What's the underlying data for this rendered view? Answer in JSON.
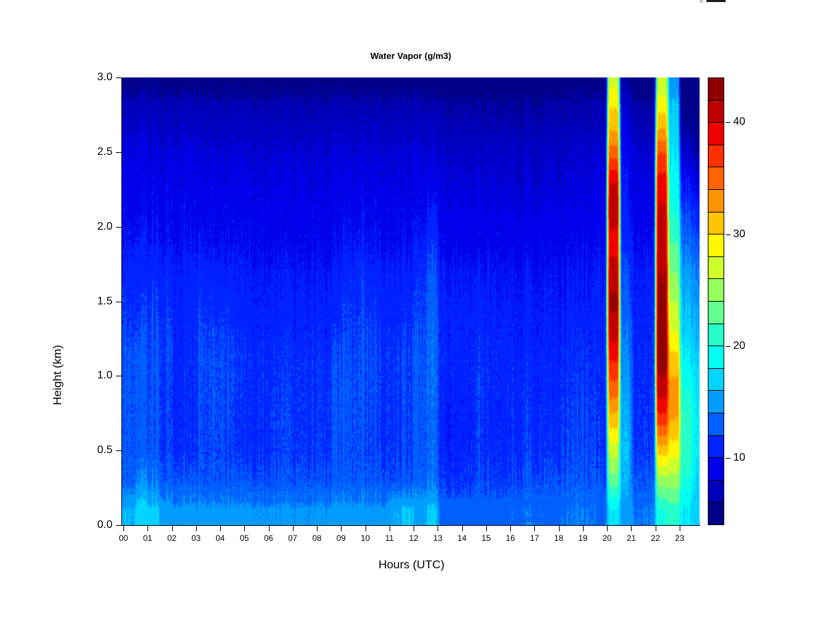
{
  "chart_data": {
    "type": "heatmap",
    "title": "Water Vapor (g/m3)",
    "xlabel": "Hours (UTC)",
    "ylabel": "Height (km)",
    "units": "g/m3",
    "x_tick_labels": [
      "00",
      "01",
      "02",
      "03",
      "04",
      "05",
      "06",
      "07",
      "08",
      "09",
      "10",
      "11",
      "12",
      "13",
      "14",
      "15",
      "16",
      "17",
      "18",
      "19",
      "20",
      "21",
      "22",
      "23"
    ],
    "y_tick_labels": [
      "0.0",
      "0.5",
      "1.0",
      "1.5",
      "2.0",
      "2.5",
      "3.0"
    ],
    "x_range_hours": [
      0,
      24
    ],
    "y_range_km": [
      0,
      3
    ],
    "x_hours_start": 0.25,
    "x_hours_step": 0.5,
    "y_km": [
      0.1,
      0.3,
      0.5,
      0.7,
      0.9,
      1.1,
      1.3,
      1.5,
      1.7,
      1.9,
      2.1,
      2.3,
      2.5,
      2.7,
      2.9
    ],
    "colorbar": {
      "min": 4,
      "max": 44,
      "step": 2,
      "tick_values": [
        10,
        20,
        30,
        40
      ],
      "tick_labels": [
        "10",
        "20",
        "30",
        "40"
      ],
      "colors": [
        "#000089",
        "#0000BC",
        "#0000EB",
        "#0023FF",
        "#0060FF",
        "#009DFF",
        "#00D4FF",
        "#00FFF2",
        "#27FFC8",
        "#63FF8F",
        "#97FF5B",
        "#CDFF29",
        "#FFF800",
        "#FFC400",
        "#FF9400",
        "#FF6400",
        "#FF3000",
        "#F00000",
        "#C00000",
        "#900000"
      ]
    },
    "values_layout": "48 time columns (0.5 h each, hours 00-24); each array lists g/m3 at heights 0.1 to 2.9 km, bottom to top",
    "values": [
      [
        16,
        13,
        12.5,
        12.5,
        12.5,
        12.5,
        12,
        11.5,
        11,
        10,
        9.5,
        9,
        8.5,
        7.5,
        6.5
      ],
      [
        17,
        14.2,
        12.6,
        12.5,
        12.5,
        12.5,
        12,
        11.5,
        11,
        10.2,
        9.5,
        9,
        8.5,
        7.5,
        6.5
      ],
      [
        16.5,
        13.8,
        12.6,
        12.5,
        12.5,
        12.5,
        12.2,
        11.7,
        11.2,
        10.2,
        9.6,
        9,
        8.5,
        7.5,
        6.5
      ],
      [
        15,
        12.8,
        12,
        12,
        12,
        12.2,
        12,
        11.5,
        11,
        10,
        9.5,
        9,
        8.4,
        7.4,
        6.4
      ],
      [
        14.5,
        12.5,
        11.2,
        11,
        11,
        11,
        10.8,
        10.6,
        10.4,
        9.7,
        9.3,
        8.8,
        8.3,
        7.3,
        6.3
      ],
      [
        14.5,
        12.5,
        11.2,
        11,
        11,
        11.2,
        11,
        10.8,
        10.5,
        9.8,
        9.3,
        8.8,
        8.3,
        7.3,
        6.3
      ],
      [
        14.6,
        12.7,
        12.2,
        12.3,
        12.3,
        12.4,
        12.2,
        11.6,
        11,
        10,
        9.4,
        8.8,
        8.3,
        7.3,
        6.3
      ],
      [
        14.6,
        12.7,
        12.3,
        12.4,
        12.4,
        12.4,
        12,
        11.4,
        10.8,
        9.9,
        9.4,
        8.8,
        8.3,
        7.3,
        6.3
      ],
      [
        14.6,
        12.6,
        12,
        12.2,
        12.3,
        12.3,
        11.8,
        11.2,
        10.6,
        9.8,
        9.3,
        8.7,
        8.2,
        7.2,
        6.2
      ],
      [
        14.5,
        12.5,
        11.5,
        11.3,
        11.5,
        11.5,
        11.2,
        10.8,
        10.4,
        9.7,
        9.2,
        8.7,
        8.2,
        7.2,
        6.2
      ],
      [
        14.5,
        12.4,
        11.3,
        11.2,
        11.3,
        11.3,
        11,
        10.7,
        10.3,
        9.6,
        9.2,
        8.6,
        8.1,
        7.1,
        6.1
      ],
      [
        14.4,
        12.4,
        11.4,
        11.4,
        11.4,
        11.3,
        11,
        10.6,
        10.2,
        9.5,
        9.1,
        8.6,
        8.1,
        7.1,
        6.1
      ],
      [
        14.4,
        12.5,
        11.8,
        11.8,
        11.6,
        11.4,
        11,
        10.6,
        10.2,
        9.5,
        9.1,
        8.6,
        8.1,
        7.1,
        6.2
      ],
      [
        14.4,
        12.5,
        11.9,
        11.9,
        11.7,
        11.5,
        11.1,
        10.6,
        10.2,
        9.5,
        9,
        8.5,
        8,
        7,
        6.2
      ],
      [
        14.4,
        12.4,
        11.6,
        11.6,
        11.5,
        11.4,
        11,
        10.5,
        10.1,
        9.4,
        9,
        8.5,
        8,
        7,
        6.1
      ],
      [
        14.4,
        12.4,
        11.5,
        11.5,
        11.4,
        11.3,
        10.9,
        10.5,
        10.1,
        9.4,
        9,
        8.5,
        8,
        7,
        6.1
      ],
      [
        14.5,
        12.5,
        11.6,
        11.6,
        11.5,
        11.4,
        11,
        10.5,
        10.1,
        9.4,
        9,
        8.5,
        8,
        7,
        6.1
      ],
      [
        14.5,
        12.6,
        12,
        12.1,
        12.1,
        11.9,
        11.3,
        10.7,
        10.2,
        9.5,
        9,
        8.5,
        8,
        7,
        6.1
      ],
      [
        14.6,
        12.7,
        12.3,
        12.4,
        12.4,
        12.3,
        11.8,
        11.4,
        11,
        10,
        9.4,
        8.7,
        8.1,
        7.1,
        6.1
      ],
      [
        14.6,
        12.7,
        12.3,
        12.4,
        12.4,
        12.4,
        12,
        11.7,
        11.4,
        10.2,
        9.5,
        8.8,
        8.2,
        7.1,
        6.1
      ],
      [
        14.5,
        12.6,
        12,
        12.1,
        12.2,
        12.2,
        11.8,
        11.3,
        10.8,
        9.9,
        9.3,
        8.7,
        8.1,
        7.1,
        6.1
      ],
      [
        14.5,
        12.5,
        11.6,
        11.5,
        11.6,
        11.7,
        11.4,
        11,
        10.5,
        9.7,
        9.2,
        8.6,
        8.1,
        7.1,
        6.1
      ],
      [
        15.8,
        12.5,
        11.7,
        11.6,
        11.7,
        11.8,
        11.4,
        11,
        10.5,
        9.7,
        9.2,
        8.6,
        8.1,
        7.1,
        6.1
      ],
      [
        16.3,
        12.6,
        12,
        12,
        12,
        12,
        11.6,
        11.1,
        10.6,
        9.8,
        9.2,
        8.6,
        8.1,
        7.1,
        6.1
      ],
      [
        15.5,
        13,
        12.5,
        12.5,
        12.5,
        12.5,
        12.2,
        11.8,
        11.4,
        10.2,
        9.5,
        8.8,
        8.2,
        7.1,
        6.1
      ],
      [
        16.5,
        13.8,
        13.3,
        13.4,
        13.5,
        13.5,
        13.3,
        13,
        12.6,
        11.5,
        10.5,
        9.2,
        8.3,
        7.2,
        6.1
      ],
      [
        13.5,
        11.8,
        11,
        10.8,
        11,
        11.2,
        11,
        10.7,
        10.3,
        9.5,
        9,
        8.4,
        7.9,
        6.8,
        5.8
      ],
      [
        12.8,
        11.4,
        10.8,
        10.6,
        10.8,
        11,
        10.8,
        10.5,
        10.1,
        9.3,
        8.8,
        8.2,
        7.7,
        6.6,
        5.6
      ],
      [
        13,
        11.6,
        11,
        10.8,
        11,
        11.1,
        10.8,
        10.4,
        10,
        9.2,
        8.7,
        8.1,
        7.6,
        6.6,
        5.6
      ],
      [
        13.4,
        12.2,
        11.8,
        11.8,
        11.8,
        11.6,
        11.2,
        10.7,
        10.2,
        9.3,
        8.8,
        8.2,
        7.6,
        6.6,
        5.6
      ],
      [
        13,
        11.7,
        11,
        10.8,
        10.9,
        11,
        10.8,
        10.4,
        10,
        9.2,
        8.7,
        8.1,
        7.6,
        6.5,
        5.5
      ],
      [
        13.2,
        11.8,
        11.2,
        11,
        11,
        11,
        10.8,
        10.4,
        10,
        9.2,
        8.7,
        8.1,
        7.6,
        6.5,
        5.5
      ],
      [
        13.6,
        12.3,
        11.6,
        11.3,
        11.2,
        11.1,
        10.8,
        10.4,
        10,
        9.2,
        8.7,
        8.1,
        7.6,
        6.5,
        5.6
      ],
      [
        13.8,
        12.4,
        11.7,
        11.4,
        11.2,
        11.1,
        10.8,
        10.4,
        10,
        9.2,
        8.7,
        8.1,
        7.6,
        6.5,
        5.6
      ],
      [
        13.6,
        12.3,
        11.5,
        11.2,
        11.1,
        11,
        10.7,
        10.3,
        9.9,
        9.2,
        8.7,
        8.1,
        7.6,
        6.6,
        5.7
      ],
      [
        13.4,
        12.2,
        11.4,
        11.1,
        11,
        10.9,
        10.6,
        10.2,
        9.9,
        9.2,
        8.7,
        8.1,
        7.6,
        6.6,
        5.8
      ],
      [
        13.8,
        12.5,
        12,
        11.8,
        11.5,
        11.2,
        10.8,
        10.4,
        10,
        9.3,
        8.8,
        8.2,
        7.7,
        6.7,
        5.9
      ],
      [
        14,
        12.7,
        12.2,
        12,
        11.7,
        11.3,
        10.9,
        10.5,
        10.1,
        9.4,
        8.9,
        8.3,
        7.8,
        6.8,
        6
      ],
      [
        13.9,
        12.6,
        12.1,
        11.9,
        11.6,
        11.3,
        10.9,
        10.5,
        10.1,
        9.4,
        8.9,
        8.3,
        7.8,
        6.8,
        6
      ],
      [
        13.5,
        12.2,
        11.5,
        11.3,
        11.2,
        11.1,
        10.8,
        10.5,
        10.2,
        9.5,
        9,
        8.4,
        7.9,
        6.9,
        6.1
      ],
      [
        18,
        23,
        27,
        31,
        35,
        38,
        41,
        42.5,
        41,
        39,
        41.5,
        40,
        35,
        31,
        29
      ],
      [
        15,
        15.5,
        16,
        15.5,
        15,
        14,
        13.5,
        12.5,
        12,
        11,
        10.3,
        9.8,
        9.2,
        8.2,
        7.2
      ],
      [
        13.8,
        12.3,
        11.5,
        11.2,
        11.1,
        11,
        10.8,
        10.5,
        10.2,
        9.5,
        9,
        8.4,
        7.8,
        6.6,
        5.6
      ],
      [
        14,
        12.5,
        11.8,
        11.5,
        11.3,
        11.2,
        11,
        10.7,
        10.4,
        9.6,
        9.1,
        8.5,
        7.9,
        6.6,
        5.5
      ],
      [
        20,
        25,
        31,
        37,
        41,
        43,
        43,
        42.5,
        42,
        41,
        40.5,
        39,
        36,
        31,
        28
      ],
      [
        21,
        25,
        29,
        32,
        33,
        31,
        28,
        26,
        24,
        22,
        20,
        19,
        18,
        17,
        16
      ],
      [
        18,
        20,
        21.5,
        21,
        20,
        18.5,
        17,
        16,
        15,
        13.5,
        12,
        10,
        8,
        5.5,
        4.5
      ],
      [
        16.5,
        17.5,
        18.5,
        18.5,
        18,
        17,
        16,
        15,
        14,
        12.5,
        11,
        9,
        6.5,
        5,
        4.5
      ]
    ]
  }
}
